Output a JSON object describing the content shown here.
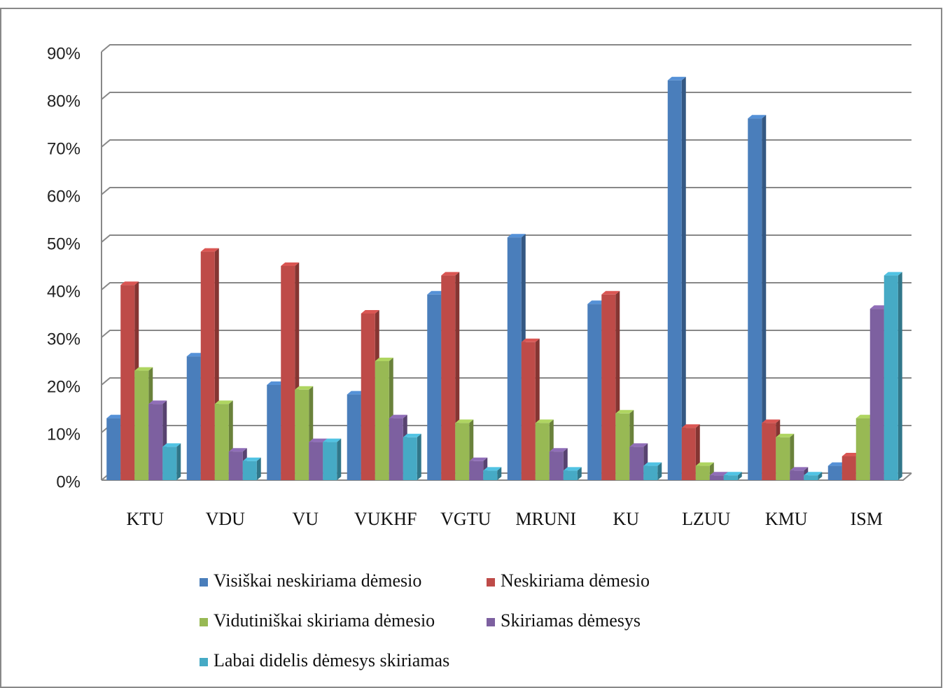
{
  "chart_data": {
    "type": "bar",
    "categories": [
      "KTU",
      "VDU",
      "VU",
      "VUKHF",
      "VGTU",
      "MRUNI",
      "KU",
      "LZUU",
      "KMU",
      "ISM"
    ],
    "series": [
      {
        "name": "Visiškai neskiriama dėmesio",
        "color": "#4a7ebb",
        "values": [
          13,
          26,
          20,
          18,
          39,
          51,
          37,
          84,
          76,
          3
        ]
      },
      {
        "name": "Neskiriama dėmesio",
        "color": "#be4b48",
        "values": [
          41,
          48,
          45,
          35,
          43,
          29,
          39,
          11,
          12,
          5
        ]
      },
      {
        "name": "Vidutiniškai skiriama dėmesio",
        "color": "#98b954",
        "values": [
          23,
          16,
          19,
          25,
          12,
          12,
          14,
          3,
          9,
          13
        ]
      },
      {
        "name": "Skiriamas dėmesys",
        "color": "#7d60a0",
        "values": [
          16,
          6,
          8,
          13,
          4,
          6,
          7,
          1,
          2,
          36
        ]
      },
      {
        "name": "Labai didelis dėmesys skiriamas",
        "color": "#46aac5",
        "values": [
          7,
          4,
          8,
          9,
          2,
          2,
          3,
          1,
          1,
          43
        ]
      }
    ],
    "ylim": [
      0,
      90
    ],
    "yticks": [
      {
        "value": 0,
        "label": "0%"
      },
      {
        "value": 10,
        "label": "10%"
      },
      {
        "value": 20,
        "label": "20%"
      },
      {
        "value": 30,
        "label": "30%"
      },
      {
        "value": 40,
        "label": "40%"
      },
      {
        "value": 50,
        "label": "50%"
      },
      {
        "value": 60,
        "label": "60%"
      },
      {
        "value": 70,
        "label": "70%"
      },
      {
        "value": 80,
        "label": "80%"
      },
      {
        "value": 90,
        "label": "90%"
      }
    ],
    "grid": true,
    "legend": "bottom"
  }
}
